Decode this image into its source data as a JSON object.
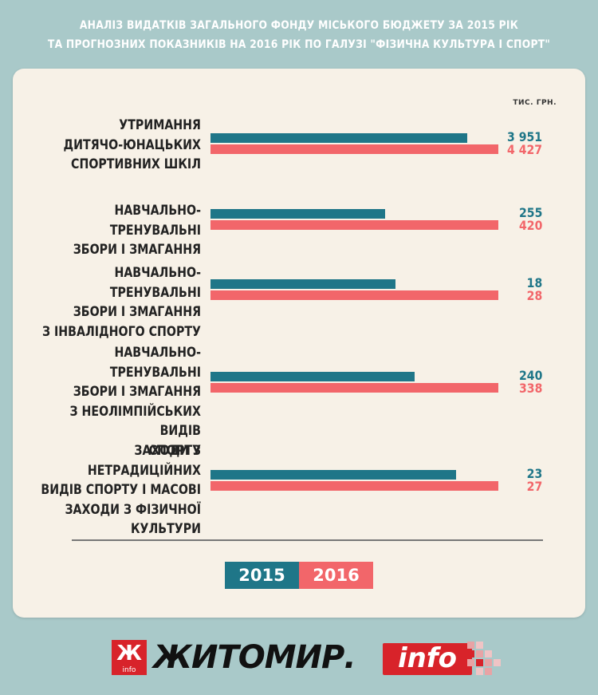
{
  "title_line1": "АНАЛІЗ ВИДАТКІВ ЗАГАЛЬНОГО ФОНДУ МІСЬКОГО БЮДЖЕТУ ЗА 2015 РІК",
  "title_line2": "ТА ПРОГНОЗНИХ ПОКАЗНИКІВ НА 2016 РІК ПО ГАЛУЗІ \"ФІЗИЧНА КУЛЬТУРА І СПОРТ\"",
  "unit": "ТИС. ГРН.",
  "colors": {
    "s2015": "#1f7688",
    "s2016": "#f2666a",
    "background": "#a9c9c9",
    "card": "#f7f1e7"
  },
  "chart_data": {
    "type": "bar",
    "orientation": "horizontal",
    "categories": [
      "УТРИМАННЯ ДИТЯЧО-ЮНАЦЬКИХ СПОРТИВНИХ ШКІЛ",
      "НАВЧАЛЬНО-ТРЕНУВАЛЬНІ ЗБОРИ І ЗМАГАННЯ",
      "НАВЧАЛЬНО-ТРЕНУВАЛЬНІ ЗБОРИ І ЗМАГАННЯ З ІНВАЛІДНОГО СПОРТУ",
      "НАВЧАЛЬНО-ТРЕНУВАЛЬНІ ЗБОРИ І ЗМАГАННЯ З НЕОЛІМПІЙСЬКИХ ВИДІВ СПОРТУ",
      "ЗАХОДИ З НЕТРАДИЦІЙНИХ ВИДІВ СПОРТУ І МАСОВІ ЗАХОДИ З ФІЗИЧНОЇ КУЛЬТУРИ"
    ],
    "category_lines": [
      [
        "УТРИМАННЯ",
        "ДИТЯЧО-ЮНАЦЬКИХ",
        "СПОРТИВНИХ ШКІЛ"
      ],
      [
        "НАВЧАЛЬНО-ТРЕНУВАЛЬНІ",
        "ЗБОРИ І ЗМАГАННЯ"
      ],
      [
        "НАВЧАЛЬНО-ТРЕНУВАЛЬНІ",
        "ЗБОРИ І ЗМАГАННЯ",
        "З ІНВАЛІДНОГО СПОРТУ"
      ],
      [
        "НАВЧАЛЬНО-ТРЕНУВАЛЬНІ",
        "ЗБОРИ І ЗМАГАННЯ",
        "З НЕОЛІМПІЙСЬКИХ ВИДІВ",
        "СПОРТУ"
      ],
      [
        "ЗАХОДИ З НЕТРАДИЦІЙНИХ",
        "ВИДІВ СПОРТУ І МАСОВІ",
        "ЗАХОДИ З ФІЗИЧНОЇ",
        "КУЛЬТУРИ"
      ]
    ],
    "series": [
      {
        "name": "2015",
        "values": [
          3951,
          255,
          18,
          240,
          23
        ],
        "labels": [
          "3 951",
          "255",
          "18",
          "240",
          "23"
        ]
      },
      {
        "name": "2016",
        "values": [
          4427,
          420,
          28,
          338,
          27
        ],
        "labels": [
          "4 427",
          "420",
          "28",
          "338",
          "27"
        ]
      }
    ],
    "scale": "each category bar pair normalized to the larger value",
    "legend": [
      "2015",
      "2016"
    ],
    "legend_position": "bottom-center"
  },
  "logo": {
    "box_letter": "Ж",
    "box_sub": "info",
    "text": "ЖИТОМИР.",
    "info": "info"
  }
}
